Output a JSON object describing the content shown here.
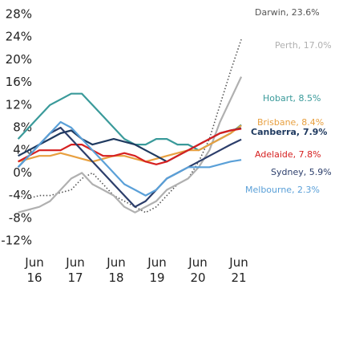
{
  "chart_data": {
    "type": "line",
    "x": [
      2016.1,
      2016.36,
      2016.62,
      2016.88,
      2017.14,
      2017.4,
      2017.66,
      2017.92,
      2018.18,
      2018.44,
      2018.7,
      2018.96,
      2019.22,
      2019.48,
      2019.74,
      2020.0,
      2020.26,
      2020.52,
      2020.78,
      2021.04,
      2021.3,
      2021.56
    ],
    "xlim": [
      2015.65,
      2022.3
    ],
    "xticks": [
      {
        "value": 2016.5,
        "label": "Jun 16"
      },
      {
        "value": 2017.5,
        "label": "Jun 17"
      },
      {
        "value": 2018.5,
        "label": "Jun 18"
      },
      {
        "value": 2019.5,
        "label": "Jun 19"
      },
      {
        "value": 2020.5,
        "label": "Jun 20"
      },
      {
        "value": 2021.5,
        "label": "Jun 21"
      }
    ],
    "ylim": [
      -13,
      29
    ],
    "yticks": [
      {
        "value": 28,
        "label": "28%"
      },
      {
        "value": 24,
        "label": "24%"
      },
      {
        "value": 20,
        "label": "20%"
      },
      {
        "value": 16,
        "label": "16%"
      },
      {
        "value": 12,
        "label": "12%"
      },
      {
        "value": 8,
        "label": "8%"
      },
      {
        "value": 4,
        "label": "4%"
      },
      {
        "value": 0,
        "label": "0%"
      },
      {
        "value": -4,
        "label": "-4%"
      },
      {
        "value": -8,
        "label": "-8%"
      },
      {
        "value": -12,
        "label": "-12%"
      }
    ],
    "grid": false,
    "series": [
      {
        "name": "Darwin, 23.6%",
        "color": "#555555",
        "dash": "dotted",
        "values": [
          -4,
          -4.5,
          -4,
          -4,
          -3.5,
          -3,
          -1,
          0,
          -2,
          -4,
          -5,
          -6,
          -7,
          -6,
          -4,
          -2,
          -1,
          2,
          6,
          12,
          18,
          23.6
        ]
      },
      {
        "name": "Perth, 17.0%",
        "color": "#b0b0b0",
        "dash": "solid",
        "values": [
          -7,
          -6.5,
          -6,
          -5,
          -3,
          -1,
          0,
          -2,
          -3,
          -4,
          -6,
          -7,
          -6,
          -5,
          -3,
          -2,
          -1,
          1,
          4,
          9,
          13,
          17.0
        ]
      },
      {
        "name": "Hobart, 8.5%",
        "color": "#3a9a9a",
        "dash": "solid",
        "values": [
          6,
          8,
          10,
          12,
          13,
          14,
          14,
          12,
          10,
          8,
          6,
          5,
          5,
          6,
          6,
          5,
          5,
          4,
          5,
          6,
          7,
          8.5
        ]
      },
      {
        "name": "Brisbane, 8.4%",
        "color": "#e8a040",
        "dash": "solid",
        "values": [
          2,
          2.5,
          3,
          3,
          3.5,
          3,
          2.5,
          2,
          2.5,
          3,
          3,
          2.5,
          2,
          2.5,
          3,
          3.5,
          4,
          4,
          5,
          6,
          7,
          8.4
        ]
      },
      {
        "name": "Canberra, 7.9%",
        "color": "#1f3a60",
        "dash": "solid",
        "values": [
          3,
          4,
          5,
          6,
          7,
          7.5,
          6,
          5,
          5.5,
          6,
          5.5,
          5,
          4,
          3,
          2,
          3,
          4,
          5,
          6,
          7,
          7.5,
          7.9
        ]
      },
      {
        "name": "Adelaide, 7.8%",
        "color": "#d62020",
        "dash": "solid",
        "values": [
          2,
          3,
          4,
          4,
          4,
          5,
          5,
          4,
          3,
          3,
          3.5,
          3,
          2,
          1.5,
          2,
          3,
          4,
          5,
          6,
          7,
          7.5,
          7.8
        ]
      },
      {
        "name": "Sydney, 5.9%",
        "color": "#2c3e6b",
        "dash": "solid",
        "values": [
          1,
          3,
          5,
          7,
          8,
          6,
          4,
          2,
          0,
          -2,
          -4,
          -6,
          -5,
          -3,
          -1,
          0,
          1,
          2,
          3,
          4,
          5,
          5.9
        ]
      },
      {
        "name": "Melbourne, 2.3%",
        "color": "#5aa0d8",
        "dash": "solid",
        "values": [
          1,
          3,
          5,
          7,
          9,
          8,
          6,
          4,
          2,
          0,
          -2,
          -3,
          -4,
          -3,
          -1,
          0,
          1,
          1,
          1,
          1.5,
          2,
          2.3
        ]
      }
    ]
  }
}
